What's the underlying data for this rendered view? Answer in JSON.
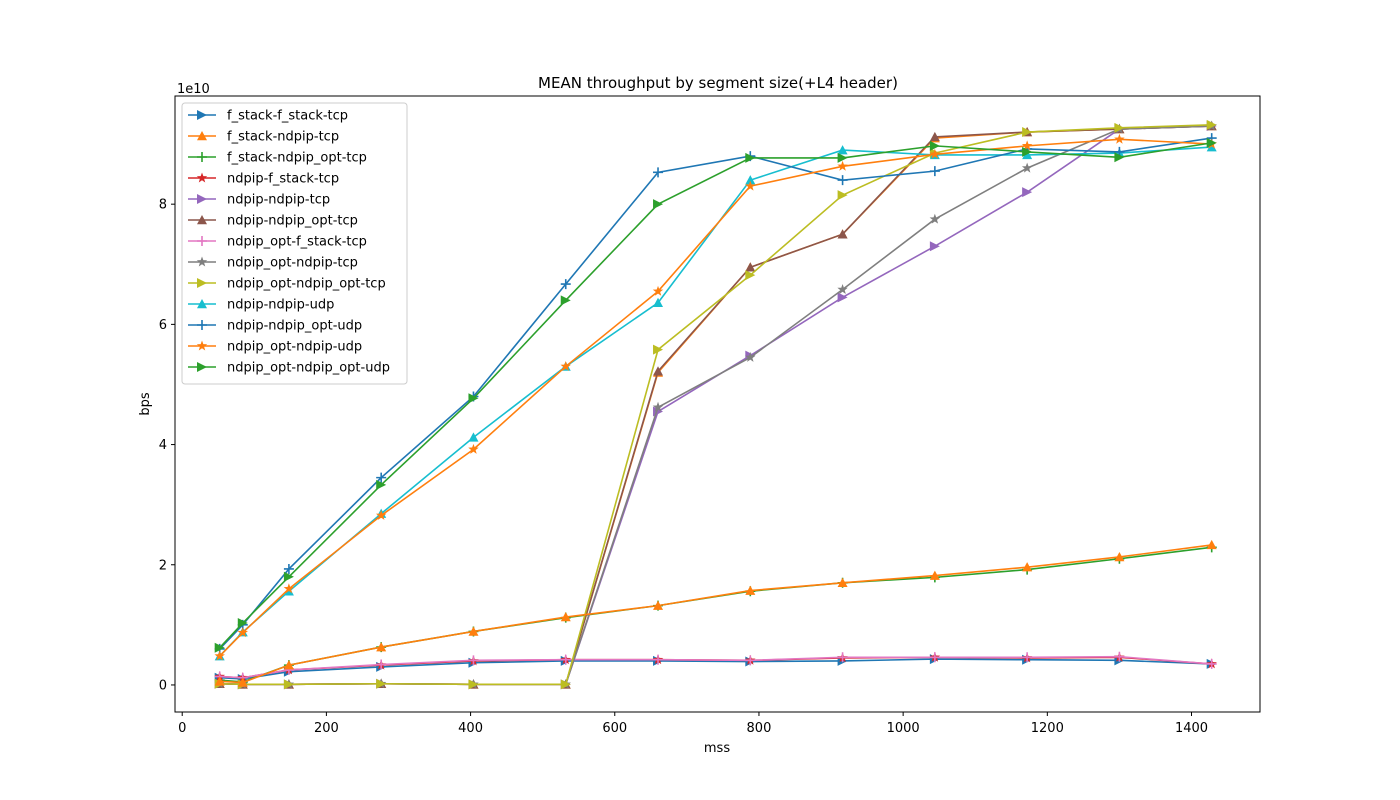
{
  "chart_data": {
    "type": "line",
    "title": "MEAN throughput by segment size(+L4 header)",
    "xlabel": "mss",
    "ylabel": "bps",
    "y_offset_text": "1e10",
    "xlim": [
      -10,
      1495
    ],
    "ylim": [
      -0.45,
      9.8
    ],
    "x_ticks": [
      0,
      200,
      400,
      600,
      800,
      1000,
      1200,
      1400
    ],
    "y_ticks": [
      0,
      2,
      4,
      6,
      8
    ],
    "x_tick_labels": [
      "0",
      "200",
      "400",
      "600",
      "800",
      "1000",
      "1200",
      "1400"
    ],
    "y_tick_labels": [
      "0",
      "2",
      "4",
      "6",
      "8"
    ],
    "legend_position": "upper-left",
    "grid": false,
    "x": [
      52,
      84,
      148,
      276,
      404,
      532,
      660,
      788,
      916,
      1044,
      1172,
      1300,
      1428
    ],
    "series": [
      {
        "name": "f_stack-f_stack-tcp",
        "color": "#1f77b4",
        "marker": "tri-right",
        "values": [
          0.12,
          0.1,
          0.22,
          0.3,
          0.37,
          0.4,
          0.4,
          0.39,
          0.4,
          0.43,
          0.42,
          0.41,
          0.35
        ]
      },
      {
        "name": "f_stack-ndpip-tcp",
        "color": "#ff7f0e",
        "marker": "tri-up",
        "values": [
          0.02,
          0.01,
          0.01,
          0.02,
          0.01,
          0.01,
          5.2,
          6.95,
          7.5,
          9.1,
          9.2,
          9.25,
          9.3
        ]
      },
      {
        "name": "f_stack-ndpip_opt-tcp",
        "color": "#2ca02c",
        "marker": "plus",
        "values": [
          0.08,
          0.05,
          0.33,
          0.63,
          0.89,
          1.12,
          1.32,
          1.56,
          1.7,
          1.79,
          1.92,
          2.1,
          2.29
        ]
      },
      {
        "name": "ndpip-f_stack-tcp",
        "color": "#d62728",
        "marker": "star",
        "values": [
          0.14,
          0.12,
          0.25,
          0.33,
          0.4,
          0.42,
          0.42,
          0.41,
          0.45,
          0.46,
          0.45,
          0.46,
          0.35
        ]
      },
      {
        "name": "ndpip-ndpip-tcp",
        "color": "#9467bd",
        "marker": "tri-right",
        "values": [
          0.02,
          0.01,
          0.01,
          0.02,
          0.01,
          0.01,
          4.55,
          5.48,
          6.45,
          7.3,
          8.2,
          9.25,
          9.3
        ]
      },
      {
        "name": "ndpip-ndpip_opt-tcp",
        "color": "#8c564b",
        "marker": "tri-up",
        "values": [
          0.02,
          0.01,
          0.01,
          0.02,
          0.01,
          0.01,
          5.22,
          6.95,
          7.5,
          9.12,
          9.2,
          9.25,
          9.3
        ]
      },
      {
        "name": "ndpip_opt-f_stack-tcp",
        "color": "#e377c2",
        "marker": "plus",
        "values": [
          0.14,
          0.12,
          0.25,
          0.34,
          0.41,
          0.42,
          0.42,
          0.41,
          0.46,
          0.46,
          0.46,
          0.47,
          0.35
        ]
      },
      {
        "name": "ndpip_opt-ndpip-tcp",
        "color": "#7f7f7f",
        "marker": "star",
        "values": [
          0.02,
          0.01,
          0.01,
          0.02,
          0.01,
          0.01,
          4.62,
          5.45,
          6.58,
          7.75,
          8.6,
          9.25,
          9.3
        ]
      },
      {
        "name": "ndpip_opt-ndpip_opt-tcp",
        "color": "#bcbd22",
        "marker": "tri-right",
        "values": [
          0.02,
          0.01,
          0.01,
          0.02,
          0.01,
          0.01,
          5.58,
          6.82,
          8.15,
          8.85,
          9.2,
          9.27,
          9.32
        ]
      },
      {
        "name": "ndpip-ndpip-udp",
        "color": "#17becf",
        "marker": "tri-up",
        "values": [
          0.48,
          0.88,
          1.56,
          2.85,
          4.12,
          5.3,
          6.36,
          8.4,
          8.9,
          8.82,
          8.82,
          8.85,
          8.95
        ]
      },
      {
        "name": "ndpip-ndpip_opt-udp",
        "color": "#1f77b4",
        "marker": "plus",
        "values": [
          0.6,
          1.0,
          1.93,
          3.45,
          4.8,
          6.67,
          8.53,
          8.8,
          8.4,
          8.55,
          8.92,
          8.87,
          9.1
        ]
      },
      {
        "name": "ndpip_opt-ndpip-udp",
        "color": "#ff7f0e",
        "marker": "star",
        "values": [
          0.48,
          0.87,
          1.6,
          2.82,
          3.92,
          5.3,
          6.55,
          8.3,
          8.63,
          8.83,
          8.97,
          9.08,
          9.0
        ]
      },
      {
        "name": "ndpip_opt-ndpip_opt-udp",
        "color": "#2ca02c",
        "marker": "tri-right",
        "values": [
          0.62,
          1.03,
          1.8,
          3.33,
          4.77,
          6.4,
          8.0,
          8.77,
          8.77,
          8.97,
          8.87,
          8.78,
          9.02
        ]
      }
    ],
    "extra_series_note": ""
  },
  "legend": {
    "entries": [
      "f_stack-f_stack-tcp",
      "f_stack-ndpip-tcp",
      "f_stack-ndpip_opt-tcp",
      "ndpip-f_stack-tcp",
      "ndpip-ndpip-tcp",
      "ndpip-ndpip_opt-tcp",
      "ndpip_opt-f_stack-tcp",
      "ndpip_opt-ndpip-tcp",
      "ndpip_opt-ndpip_opt-tcp",
      "ndpip-ndpip-udp",
      "ndpip-ndpip_opt-udp",
      "ndpip_opt-ndpip-udp",
      "ndpip_opt-ndpip_opt-udp"
    ]
  },
  "lower_series": {
    "name": "",
    "color": "#ff7f0e",
    "marker": "tri-up",
    "values": [
      0.06,
      0.04,
      0.33,
      0.63,
      0.89,
      1.13,
      1.32,
      1.57,
      1.7,
      1.82,
      1.96,
      2.13,
      2.33
    ]
  }
}
